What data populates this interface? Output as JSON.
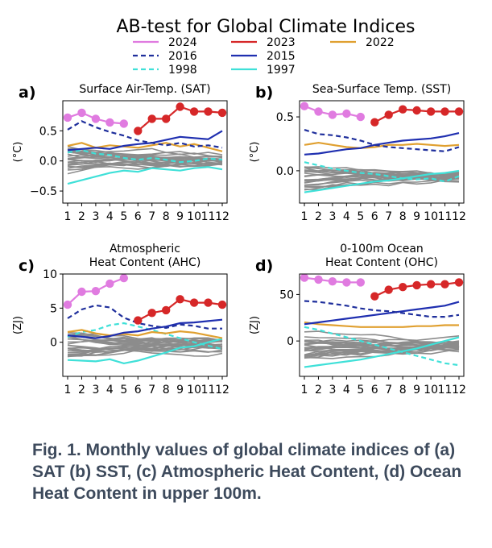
{
  "title": "AB-test for Global Climate Indices",
  "caption": "Fig. 1. Monthly values of global climate indices of (a) SAT (b) SST, (c) Atmospheric Heat Content, (d) Ocean Heat Content in upper 100m.",
  "legend": [
    {
      "name": "2024",
      "color": "#e07be0",
      "dash": "solid"
    },
    {
      "name": "2023",
      "color": "#d62728",
      "dash": "solid"
    },
    {
      "name": "2022",
      "color": "#e0a030",
      "dash": "solid"
    },
    {
      "name": "2016",
      "color": "#1f2f9c",
      "dash": "dashed"
    },
    {
      "name": "2015",
      "color": "#1f2fb0",
      "dash": "solid"
    },
    {
      "name": "1998",
      "color": "#3fe0d8",
      "dash": "dashed"
    },
    {
      "name": "1997",
      "color": "#3fe0d8",
      "dash": "solid"
    }
  ],
  "chart_data": [
    {
      "type": "line",
      "panel_label": "a)",
      "title_lines": [
        "Surface Air-Temp. (SAT)"
      ],
      "ylabel": "(°C)",
      "x": [
        1,
        2,
        3,
        4,
        5,
        6,
        7,
        8,
        9,
        10,
        11,
        12
      ],
      "xticks": [
        "1",
        "2",
        "3",
        "4",
        "5",
        "6",
        "7",
        "8",
        "9",
        "10",
        "11",
        "12"
      ],
      "ylim": [
        -0.7,
        1.0
      ],
      "yticks": [
        -0.5,
        0.0,
        0.5
      ],
      "ytick_labels": [
        "−0.5",
        "0.0",
        "0.5"
      ],
      "series": [
        {
          "name": "2024",
          "markers": true,
          "values": [
            0.72,
            0.8,
            0.7,
            0.64,
            0.62,
            null,
            null,
            null,
            null,
            null,
            null,
            null
          ]
        },
        {
          "name": "2023",
          "markers": true,
          "values": [
            null,
            null,
            null,
            null,
            null,
            0.5,
            0.7,
            0.7,
            0.9,
            0.82,
            0.82,
            0.8
          ]
        },
        {
          "name": "2022",
          "values": [
            0.25,
            0.3,
            0.22,
            0.26,
            0.24,
            0.22,
            0.26,
            0.3,
            0.24,
            0.28,
            0.22,
            0.16
          ]
        },
        {
          "name": "2016",
          "values": [
            0.52,
            0.66,
            0.56,
            0.48,
            0.42,
            0.34,
            0.3,
            0.26,
            0.3,
            0.24,
            0.26,
            0.22
          ]
        },
        {
          "name": "2015",
          "values": [
            0.18,
            0.2,
            0.22,
            0.2,
            0.25,
            0.28,
            0.3,
            0.35,
            0.4,
            0.38,
            0.36,
            0.5
          ]
        },
        {
          "name": "1998",
          "values": [
            0.14,
            0.18,
            0.12,
            0.1,
            0.05,
            0.02,
            0.05,
            0.02,
            -0.02,
            0.0,
            0.04,
            0.02
          ]
        },
        {
          "name": "1997",
          "values": [
            -0.38,
            -0.32,
            -0.26,
            -0.2,
            -0.16,
            -0.18,
            -0.12,
            -0.14,
            -0.16,
            -0.12,
            -0.1,
            -0.14
          ]
        }
      ]
    },
    {
      "type": "line",
      "panel_label": "b)",
      "title_lines": [
        "Sea-Surface Temp. (SST)"
      ],
      "ylabel": "(°C)",
      "x": [
        1,
        2,
        3,
        4,
        5,
        6,
        7,
        8,
        9,
        10,
        11,
        12
      ],
      "xticks": [
        "1",
        "2",
        "3",
        "4",
        "5",
        "6",
        "7",
        "8",
        "9",
        "10",
        "11",
        "12"
      ],
      "ylim": [
        -0.3,
        0.65
      ],
      "yticks": [
        0.0,
        0.5
      ],
      "ytick_labels": [
        "0.0",
        "0.5"
      ],
      "series": [
        {
          "name": "2024",
          "markers": true,
          "values": [
            0.6,
            0.55,
            0.52,
            0.53,
            0.5,
            null,
            null,
            null,
            null,
            null,
            null,
            null
          ]
        },
        {
          "name": "2023",
          "markers": true,
          "values": [
            null,
            null,
            null,
            null,
            null,
            0.45,
            0.52,
            0.57,
            0.56,
            0.55,
            0.55,
            0.55
          ]
        },
        {
          "name": "2022",
          "values": [
            0.24,
            0.26,
            0.24,
            0.22,
            0.21,
            0.22,
            0.24,
            0.24,
            0.25,
            0.24,
            0.23,
            0.24
          ]
        },
        {
          "name": "2016",
          "values": [
            0.38,
            0.34,
            0.33,
            0.31,
            0.28,
            0.24,
            0.22,
            0.21,
            0.2,
            0.19,
            0.18,
            0.22
          ]
        },
        {
          "name": "2015",
          "values": [
            0.15,
            0.16,
            0.18,
            0.2,
            0.21,
            0.24,
            0.26,
            0.28,
            0.29,
            0.3,
            0.32,
            0.35
          ]
        },
        {
          "name": "1998",
          "values": [
            0.08,
            0.05,
            0.02,
            0.0,
            -0.02,
            -0.03,
            -0.05,
            -0.07,
            -0.08,
            -0.07,
            -0.1,
            -0.05
          ]
        },
        {
          "name": "1997",
          "values": [
            -0.2,
            -0.18,
            -0.16,
            -0.14,
            -0.12,
            -0.1,
            -0.09,
            -0.07,
            -0.05,
            -0.03,
            -0.02,
            0.0
          ]
        }
      ]
    },
    {
      "type": "line",
      "panel_label": "c)",
      "title_lines": [
        "Atmospheric",
        "Heat Content (AHC)"
      ],
      "ylabel": "(ZJ)",
      "x": [
        1,
        2,
        3,
        4,
        5,
        6,
        7,
        8,
        9,
        10,
        11,
        12
      ],
      "xticks": [
        "1",
        "2",
        "3",
        "4",
        "5",
        "6",
        "7",
        "8",
        "9",
        "10",
        "11",
        "12"
      ],
      "ylim": [
        -5,
        10
      ],
      "yticks": [
        0,
        5,
        10
      ],
      "ytick_labels": [
        "0",
        "5",
        "10"
      ],
      "series": [
        {
          "name": "2024",
          "markers": true,
          "values": [
            5.5,
            7.4,
            7.5,
            8.6,
            9.4,
            null,
            null,
            null,
            null,
            null,
            null,
            null
          ]
        },
        {
          "name": "2023",
          "markers": true,
          "values": [
            null,
            null,
            null,
            null,
            null,
            3.2,
            4.3,
            4.7,
            6.3,
            5.8,
            5.8,
            5.5
          ]
        },
        {
          "name": "2022",
          "values": [
            1.5,
            1.8,
            1.3,
            1.0,
            1.2,
            1.0,
            1.5,
            1.3,
            1.6,
            1.4,
            1.0,
            0.6
          ]
        },
        {
          "name": "2016",
          "values": [
            3.5,
            4.8,
            5.4,
            5.1,
            3.6,
            2.8,
            2.4,
            2.1,
            2.6,
            2.4,
            2.0,
            2.0
          ]
        },
        {
          "name": "2015",
          "values": [
            1.0,
            0.8,
            0.6,
            0.9,
            1.4,
            1.6,
            2.0,
            2.3,
            2.8,
            2.9,
            3.1,
            3.3
          ]
        },
        {
          "name": "1998",
          "values": [
            0.8,
            1.5,
            1.8,
            2.5,
            2.8,
            2.3,
            1.8,
            1.2,
            0.6,
            0.0,
            -0.5,
            -1.0
          ]
        },
        {
          "name": "1997",
          "values": [
            -2.6,
            -2.7,
            -2.8,
            -2.5,
            -3.1,
            -2.7,
            -2.1,
            -1.5,
            -0.8,
            -0.6,
            0.0,
            0.5
          ]
        }
      ]
    },
    {
      "type": "line",
      "panel_label": "d)",
      "title_lines": [
        "0-100m Ocean",
        "Heat Content (OHC)"
      ],
      "ylabel": "(ZJ)",
      "x": [
        1,
        2,
        3,
        4,
        5,
        6,
        7,
        8,
        9,
        10,
        11,
        12
      ],
      "xticks": [
        "1",
        "2",
        "3",
        "4",
        "5",
        "6",
        "7",
        "8",
        "9",
        "10",
        "11",
        "12"
      ],
      "ylim": [
        -38,
        72
      ],
      "yticks": [
        0,
        50
      ],
      "ytick_labels": [
        "0",
        "50"
      ],
      "series": [
        {
          "name": "2024",
          "markers": true,
          "values": [
            68,
            66,
            64,
            63,
            63,
            null,
            null,
            null,
            null,
            null,
            null,
            null
          ]
        },
        {
          "name": "2023",
          "markers": true,
          "values": [
            null,
            null,
            null,
            null,
            null,
            48,
            55,
            58,
            60,
            61,
            61,
            63
          ]
        },
        {
          "name": "2022",
          "values": [
            20,
            18,
            17,
            16,
            15,
            15,
            15,
            15,
            16,
            16,
            17,
            17
          ]
        },
        {
          "name": "2016",
          "values": [
            43,
            42,
            40,
            38,
            35,
            33,
            32,
            30,
            28,
            26,
            26,
            28
          ]
        },
        {
          "name": "2015",
          "values": [
            18,
            20,
            22,
            24,
            26,
            28,
            30,
            32,
            34,
            36,
            38,
            42
          ]
        },
        {
          "name": "1998",
          "values": [
            15,
            12,
            8,
            4,
            0,
            -4,
            -8,
            -12,
            -16,
            -20,
            -24,
            -26
          ]
        },
        {
          "name": "1997",
          "values": [
            -28,
            -26,
            -24,
            -22,
            -20,
            -17,
            -14,
            -11,
            -8,
            -4,
            0,
            4
          ]
        }
      ]
    }
  ]
}
